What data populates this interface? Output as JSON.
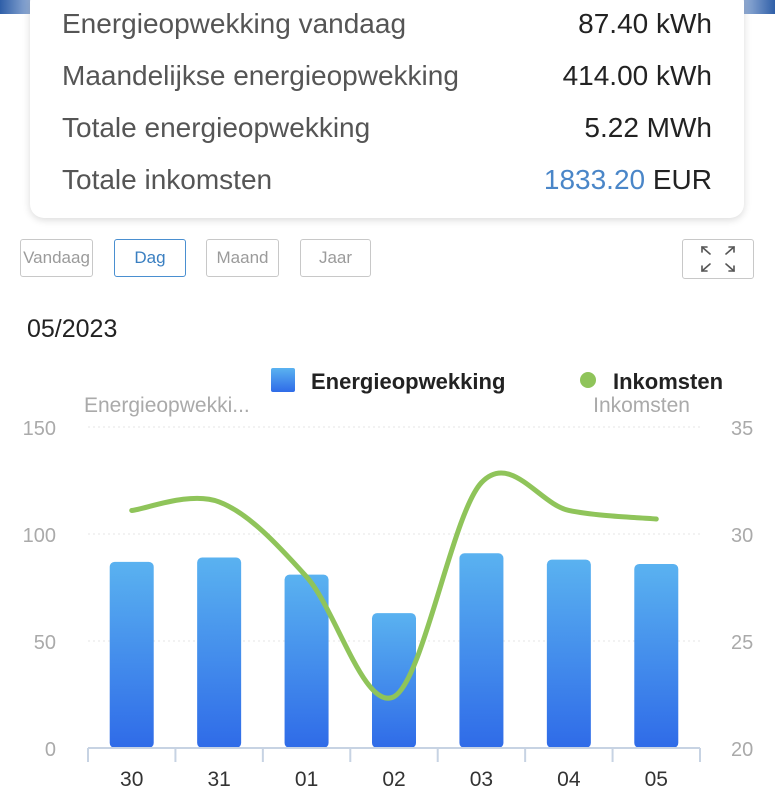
{
  "summary": {
    "rows": [
      {
        "label": "Energieopwekking vandaag",
        "value": "87.40 kWh"
      },
      {
        "label": "Maandelijkse energieopwekking",
        "value": "414.00 kWh"
      },
      {
        "label": "Totale energieopwekking",
        "value": "5.22 MWh"
      }
    ],
    "income": {
      "label": "Totale inkomsten",
      "amount": "1833.20",
      "currency": "EUR"
    }
  },
  "tabs": [
    "Vandaag",
    "Dag",
    "Maand",
    "Jaar"
  ],
  "active_tab": "Dag",
  "period_label": "05/2023",
  "colors": {
    "bar_top": "#5ab2f0",
    "bar_bottom": "#2f6be8",
    "line": "#8fc45a",
    "accent": "#4a86c8"
  },
  "chart_data": {
    "type": "bar+line",
    "categories": [
      "30",
      "31",
      "01",
      "02",
      "03",
      "04",
      "05"
    ],
    "legend": [
      "Energieopwekking",
      "Inkomsten"
    ],
    "left_axis": {
      "label": "Energieopwekki...",
      "ticks": [
        "0",
        "50",
        "100",
        "150"
      ],
      "range": [
        0,
        150
      ]
    },
    "right_axis": {
      "label": "Inkomsten",
      "ticks": [
        "20",
        "25",
        "30",
        "35"
      ],
      "range": [
        20,
        35
      ]
    },
    "series": [
      {
        "name": "Energieopwekking",
        "type": "bar",
        "axis": "left",
        "values": [
          87,
          89,
          81,
          63,
          91,
          88,
          86
        ]
      },
      {
        "name": "Inkomsten",
        "type": "line",
        "axis": "right",
        "values": [
          31.1,
          31.5,
          28.0,
          22.4,
          32.4,
          31.1,
          30.7
        ]
      }
    ],
    "grid": true,
    "legend_position": "top-right"
  }
}
